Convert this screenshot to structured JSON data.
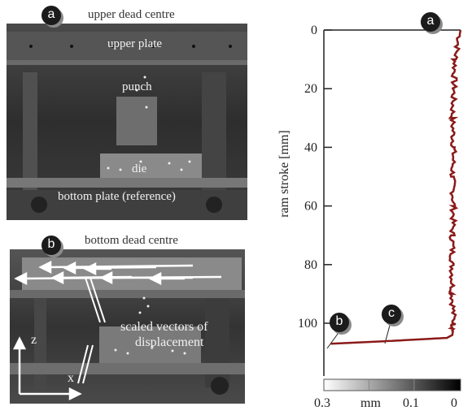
{
  "top_panel": {
    "caption": "upper dead centre",
    "marker": "a",
    "labels": {
      "upper_plate": "upper plate",
      "punch": "punch",
      "die": "die",
      "bottom_plate": "bottom plate (reference)"
    }
  },
  "bottom_panel": {
    "caption": "bottom dead centre",
    "marker": "b",
    "vectors_label": [
      "scaled vectors of",
      "displacement"
    ],
    "axis_z": "z",
    "axis_x": "x"
  },
  "chart": {
    "ylabel": "ram stroke [mm]",
    "markers": [
      "a",
      "b",
      "c"
    ],
    "colorbar": {
      "ticks": [
        "0.3",
        "mm",
        "0.1",
        "0"
      ],
      "range": [
        0.3,
        0
      ],
      "colors": [
        "#ffffff",
        "#000000"
      ]
    },
    "line_color": "#8b1a1a"
  },
  "chart_data": {
    "type": "line",
    "ylabel": "ram stroke [mm]",
    "xlabel": "",
    "y_ticks": [
      0,
      20,
      40,
      60,
      80,
      100
    ],
    "ylim": [
      0,
      118
    ],
    "y_inverted": true,
    "x_axis_ticks_shown": false,
    "series": [
      {
        "color": "#8b1a1a",
        "points": [
          {
            "x": 1.0,
            "y": 0
          },
          {
            "x": 0.96,
            "y": 10
          },
          {
            "x": 0.95,
            "y": 20
          },
          {
            "x": 0.94,
            "y": 30
          },
          {
            "x": 0.95,
            "y": 40
          },
          {
            "x": 0.94,
            "y": 50
          },
          {
            "x": 0.95,
            "y": 60
          },
          {
            "x": 0.94,
            "y": 70
          },
          {
            "x": 0.94,
            "y": 80
          },
          {
            "x": 0.94,
            "y": 90
          },
          {
            "x": 0.95,
            "y": 100
          },
          {
            "x": 0.94,
            "y": 104
          },
          {
            "x": 0.9,
            "y": 105
          },
          {
            "x": 0.5,
            "y": 106
          },
          {
            "x": 0.05,
            "y": 107
          }
        ]
      }
    ]
  }
}
